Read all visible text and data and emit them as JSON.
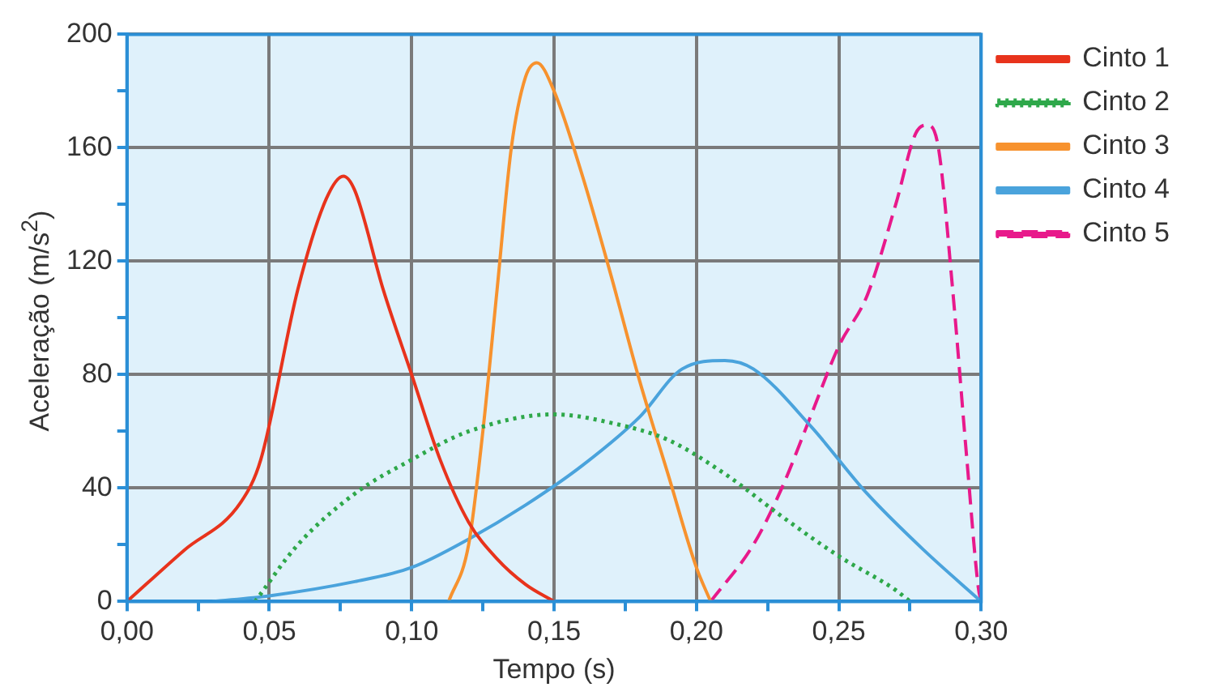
{
  "chart_data": {
    "type": "line",
    "xlabel": "Tempo (s)",
    "ylabel": "Aceleração (m/s$^{2}$)",
    "xlim": [
      0,
      0.3
    ],
    "ylim": [
      0,
      200
    ],
    "xticks": [
      {
        "value": 0,
        "label": "0,00"
      },
      {
        "value": 0.025,
        "label": null
      },
      {
        "value": 0.05,
        "label": "0,05"
      },
      {
        "value": 0.075,
        "label": null
      },
      {
        "value": 0.1,
        "label": "0,10"
      },
      {
        "value": 0.125,
        "label": null
      },
      {
        "value": 0.15,
        "label": "0,15"
      },
      {
        "value": 0.175,
        "label": null
      },
      {
        "value": 0.2,
        "label": "0,20"
      },
      {
        "value": 0.225,
        "label": null
      },
      {
        "value": 0.25,
        "label": "0,25"
      },
      {
        "value": 0.275,
        "label": null
      },
      {
        "value": 0.3,
        "label": "0,30"
      }
    ],
    "yticks": [
      0,
      {
        "value": 20,
        "label": null
      },
      40,
      {
        "value": 60,
        "label": null
      },
      80,
      {
        "value": 100,
        "label": null
      },
      120,
      {
        "value": 140,
        "label": null
      },
      160,
      {
        "value": 180,
        "label": null
      },
      200
    ],
    "grid": true,
    "legend": "right",
    "marker": "none",
    "series": [
      {
        "name": "Cinto 1",
        "color": "#e8331c",
        "line_style": "solid",
        "x": [
          0,
          0.02,
          0.04,
          0.047,
          0.06,
          0.07,
          0.076,
          0.08,
          0.09,
          0.1,
          0.11,
          0.12,
          0.13,
          0.14,
          0.15
        ],
        "values": [
          0,
          18,
          35,
          50,
          110,
          142,
          150,
          145,
          110,
          80,
          50,
          28,
          15,
          6,
          0
        ]
      },
      {
        "name": "Cinto 2",
        "color": "#2ea84a",
        "line_style": "dotted",
        "x": [
          0.045,
          0.06,
          0.08,
          0.1,
          0.12,
          0.15,
          0.17,
          0.19,
          0.21,
          0.23,
          0.25,
          0.27,
          0.275
        ],
        "values": [
          0,
          20,
          38,
          50,
          60,
          66,
          63,
          57,
          45,
          30,
          16,
          4,
          0
        ]
      },
      {
        "name": "Cinto 3",
        "color": "#f7922e",
        "line_style": "solid",
        "x": [
          0.113,
          0.12,
          0.125,
          0.13,
          0.135,
          0.14,
          0.144,
          0.15,
          0.16,
          0.17,
          0.18,
          0.19,
          0.2,
          0.205
        ],
        "values": [
          0,
          20,
          60,
          110,
          160,
          185,
          190,
          180,
          150,
          115,
          78,
          45,
          12,
          0
        ]
      },
      {
        "name": "Cinto 4",
        "color": "#4aa3dc",
        "line_style": "solid",
        "x": [
          0.03,
          0.05,
          0.08,
          0.1,
          0.12,
          0.14,
          0.16,
          0.18,
          0.195,
          0.21,
          0.22,
          0.24,
          0.26,
          0.28,
          0.3
        ],
        "values": [
          0,
          2,
          7,
          12,
          22,
          34,
          48,
          65,
          82,
          85,
          82,
          62,
          38,
          18,
          0
        ]
      },
      {
        "name": "Cinto 5",
        "color": "#e8198b",
        "line_style": "dashed",
        "x": [
          0.205,
          0.22,
          0.23,
          0.24,
          0.25,
          0.26,
          0.27,
          0.277,
          0.281,
          0.285,
          0.29,
          0.295,
          0.299,
          0.3
        ],
        "values": [
          0,
          20,
          40,
          65,
          90,
          108,
          140,
          165,
          168,
          160,
          110,
          50,
          5,
          0
        ]
      }
    ]
  }
}
